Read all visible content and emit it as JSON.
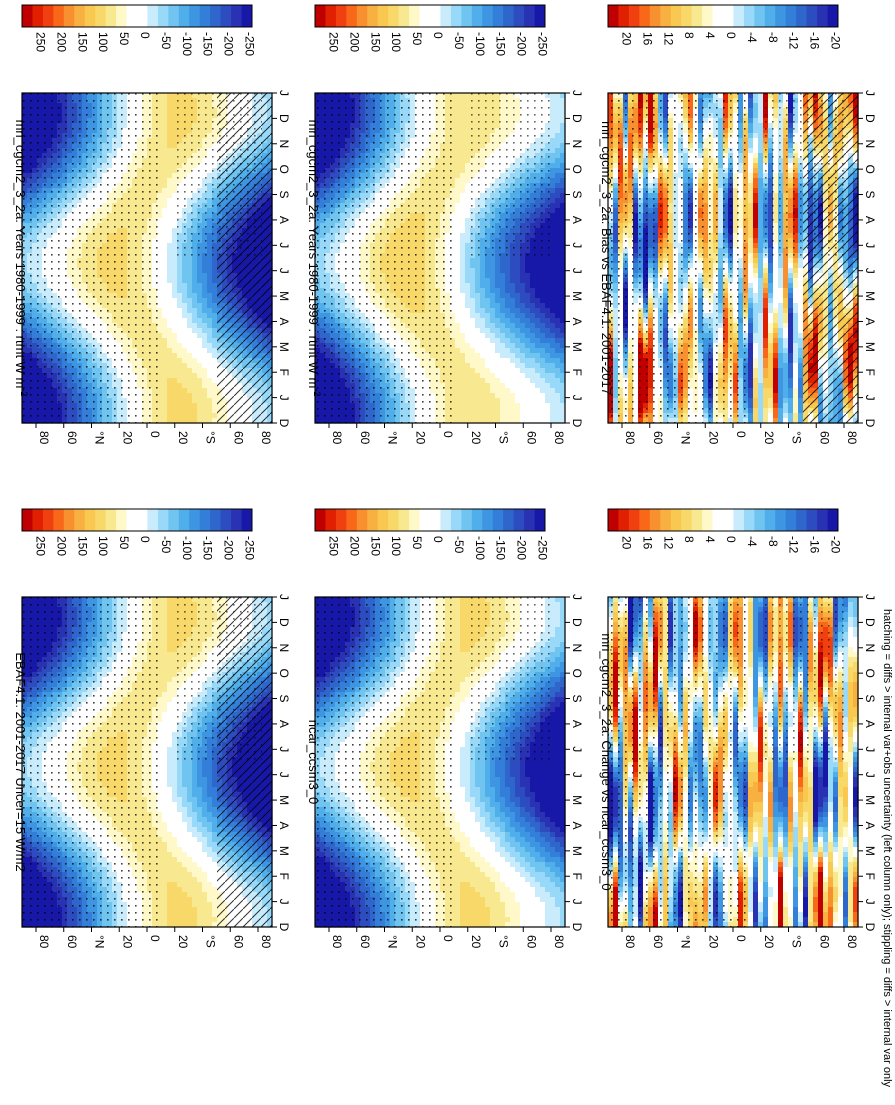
{
  "figure": {
    "orientation": "rotated 90 degrees clockwise",
    "footnote": "hatching = diffs > internal var+obs uncertainty (left column only); stippling = diffs > internal var only"
  },
  "chart_data": [
    {
      "type": "heatmap",
      "title": "mri_cgcm2_3_2a: Years 1980-1999 : rtmt W m",
      "title_sup": "-2",
      "lat_labels": [
        "80",
        "60",
        "°N",
        "20",
        "0",
        "20",
        "°S",
        "60",
        "80"
      ],
      "month_labels": [
        "D",
        "J",
        "F",
        "M",
        "A",
        "M",
        "J",
        "J",
        "A",
        "S",
        "O",
        "N",
        "D",
        "J"
      ],
      "colorbar_labels": [
        "250",
        "200",
        "150",
        "100",
        "50",
        "0",
        "-50",
        "-100",
        "-150",
        "-200",
        "-250"
      ],
      "field": "rtmt",
      "kind": "abs",
      "hatching": true,
      "zlim": [
        -275,
        275
      ]
    },
    {
      "type": "heatmap",
      "title": "mri_cgcm2_3_2a: Years 1980-1999 : rtmt W m",
      "title_sup": "-2",
      "lat_labels": [
        "80",
        "60",
        "°N",
        "20",
        "0",
        "20",
        "°S",
        "60",
        "80"
      ],
      "month_labels": [
        "D",
        "J",
        "F",
        "M",
        "A",
        "M",
        "J",
        "J",
        "A",
        "S",
        "O",
        "N",
        "D",
        "J"
      ],
      "colorbar_labels": [
        "250",
        "200",
        "150",
        "100",
        "50",
        "0",
        "-50",
        "-100",
        "-150",
        "-200",
        "-250"
      ],
      "field": "rtmt",
      "kind": "abs",
      "hatching": false,
      "zlim": [
        -275,
        275
      ]
    },
    {
      "type": "heatmap",
      "title": "EBAF4.1: 2001-2017 Uncer=15 W/m2",
      "title_sup": "",
      "lat_labels": [
        "80",
        "60",
        "°N",
        "20",
        "0",
        "20",
        "°S",
        "60",
        "80"
      ],
      "month_labels": [
        "D",
        "J",
        "F",
        "M",
        "A",
        "M",
        "J",
        "J",
        "A",
        "S",
        "O",
        "N",
        "D",
        "J"
      ],
      "colorbar_labels": [
        "250",
        "200",
        "150",
        "100",
        "50",
        "0",
        "-50",
        "-100",
        "-150",
        "-200",
        "-250"
      ],
      "field": "rtmt",
      "kind": "abs",
      "hatching": true,
      "zlim": [
        -275,
        275
      ]
    },
    {
      "type": "heatmap",
      "title": "ncar_ccsm3_0",
      "title_sup": "",
      "lat_labels": [
        "80",
        "60",
        "°N",
        "20",
        "0",
        "20",
        "°S",
        "60",
        "80"
      ],
      "month_labels": [
        "D",
        "J",
        "F",
        "M",
        "A",
        "M",
        "J",
        "J",
        "A",
        "S",
        "O",
        "N",
        "D",
        "J"
      ],
      "colorbar_labels": [
        "250",
        "200",
        "150",
        "100",
        "50",
        "0",
        "-50",
        "-100",
        "-150",
        "-200",
        "-250"
      ],
      "field": "rtmt",
      "kind": "abs",
      "hatching": false,
      "zlim": [
        -275,
        275
      ]
    },
    {
      "type": "heatmap",
      "title": "mri_cgcm2_3_2a: Bias vs EBAF4.1: 2001-2017",
      "title_sup": "",
      "lat_labels": [
        "80",
        "60",
        "°N",
        "20",
        "0",
        "20",
        "°S",
        "60",
        "80"
      ],
      "month_labels": [
        "D",
        "J",
        "F",
        "M",
        "A",
        "M",
        "J",
        "J",
        "A",
        "S",
        "O",
        "N",
        "D",
        "J"
      ],
      "colorbar_labels": [
        "20",
        "16",
        "12",
        "8",
        "4",
        "0",
        "-4",
        "-8",
        "-12",
        "-16",
        "-20"
      ],
      "field": "rtmt",
      "kind": "diff",
      "hatching": true,
      "zlim": [
        -22,
        22
      ]
    },
    {
      "type": "heatmap",
      "title": "mri_cgcm2_3_2a: Change vs ncar_ccsm3_0",
      "title_sup": "",
      "lat_labels": [
        "80",
        "60",
        "°N",
        "20",
        "0",
        "20",
        "°S",
        "60",
        "80"
      ],
      "month_labels": [
        "D",
        "J",
        "F",
        "M",
        "A",
        "M",
        "J",
        "J",
        "A",
        "S",
        "O",
        "N",
        "D",
        "J"
      ],
      "colorbar_labels": [
        "20",
        "16",
        "12",
        "8",
        "4",
        "0",
        "-4",
        "-8",
        "-12",
        "-16",
        "-20"
      ],
      "field": "rtmt",
      "kind": "diff",
      "hatching": false,
      "zlim": [
        -22,
        22
      ]
    }
  ],
  "palette": [
    "#c00000",
    "#e02000",
    "#f04010",
    "#f86818",
    "#f89030",
    "#f8b040",
    "#f8c850",
    "#f8d868",
    "#f8e890",
    "#fff8c8",
    "#ffffff",
    "#ffffff",
    "#c8ecfc",
    "#98d8f8",
    "#70c4f0",
    "#50aeea",
    "#3e96e2",
    "#327ed8",
    "#2e66cc",
    "#2c4cc0",
    "#2a32b4",
    "#1818a8"
  ]
}
